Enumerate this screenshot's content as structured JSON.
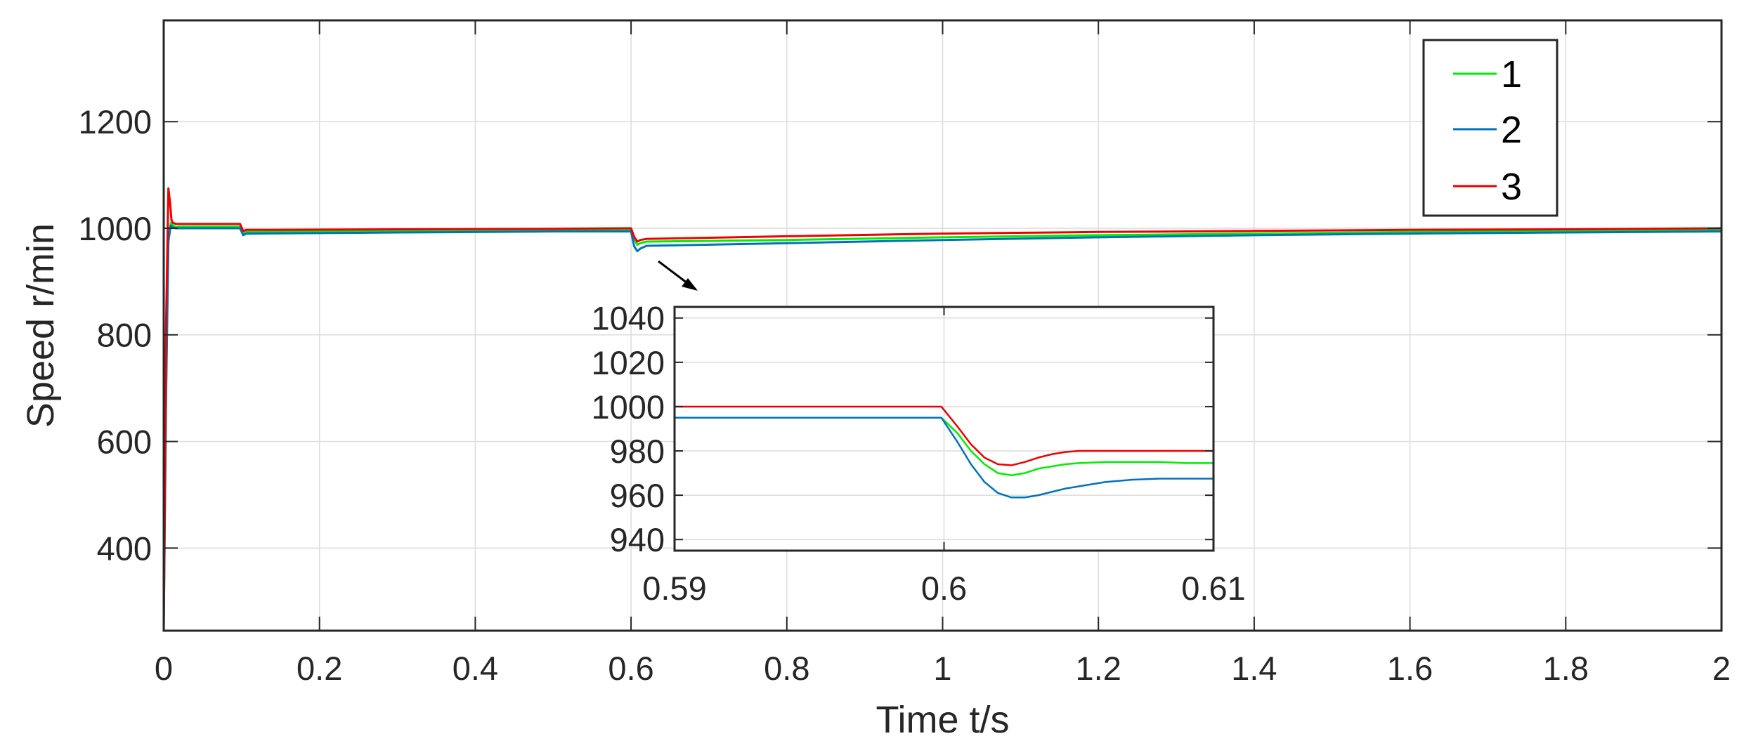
{
  "chart_data": [
    {
      "type": "line",
      "title": "",
      "xlabel": "Time  t/s",
      "ylabel": "Speed  r/min",
      "xlim": [
        0,
        2
      ],
      "ylim": [
        245,
        1390
      ],
      "xticks": [
        0,
        0.2,
        0.4,
        0.6,
        0.8,
        1,
        1.2,
        1.4,
        1.6,
        1.8,
        2
      ],
      "xtick_labels": [
        "0",
        "0.2",
        "0.4",
        "0.6",
        "0.8",
        "1",
        "1.2",
        "1.4",
        "1.6",
        "1.8",
        "2"
      ],
      "yticks": [
        400,
        600,
        800,
        1000,
        1200
      ],
      "ytick_labels": [
        "400",
        "600",
        "800",
        "1000",
        "1200"
      ],
      "grid": true,
      "legend": "top-right",
      "series": [
        {
          "name": "1",
          "color": "#00ee00",
          "x": [
            0,
            0.003,
            0.006,
            0.009,
            0.012,
            0.016,
            0.02,
            0.05,
            0.098,
            0.102,
            0.106,
            0.115,
            0.3,
            0.5,
            0.599,
            0.6,
            0.604,
            0.608,
            0.612,
            0.62,
            0.8,
            1.0,
            1.2,
            1.4,
            1.6,
            1.8,
            2.0
          ],
          "y": [
            245,
            700,
            980,
            1010,
            1005,
            1002,
            1003,
            1003,
            1003,
            990,
            993,
            993,
            995,
            996,
            996,
            996,
            980,
            969,
            972,
            975,
            978,
            983,
            987,
            990,
            993,
            995,
            997
          ]
        },
        {
          "name": "2",
          "color": "#0072bd",
          "x": [
            0,
            0.003,
            0.006,
            0.009,
            0.012,
            0.016,
            0.02,
            0.05,
            0.098,
            0.102,
            0.106,
            0.115,
            0.3,
            0.5,
            0.599,
            0.6,
            0.604,
            0.608,
            0.612,
            0.62,
            0.8,
            1.0,
            1.2,
            1.4,
            1.6,
            1.8,
            2.0
          ],
          "y": [
            245,
            680,
            975,
            1005,
            1001,
            1000,
            1000,
            1000,
            1000,
            987,
            990,
            990,
            992,
            994,
            994,
            994,
            966,
            957,
            962,
            967,
            972,
            978,
            983,
            987,
            990,
            992,
            994
          ]
        },
        {
          "name": "3",
          "color": "#ee0000",
          "x": [
            0,
            0.003,
            0.006,
            0.008,
            0.01,
            0.012,
            0.016,
            0.02,
            0.05,
            0.098,
            0.102,
            0.106,
            0.115,
            0.3,
            0.5,
            0.599,
            0.6,
            0.604,
            0.608,
            0.612,
            0.62,
            0.8,
            1.0,
            1.2,
            1.4,
            1.6,
            1.8,
            2.0
          ],
          "y": [
            245,
            820,
            1075,
            1050,
            1015,
            1010,
            1008,
            1008,
            1008,
            1008,
            995,
            997,
            997,
            998,
            999,
            1000,
            1000,
            984,
            975,
            978,
            980,
            985,
            990,
            993,
            995,
            997,
            998,
            1000
          ]
        }
      ]
    },
    {
      "type": "line",
      "title": "",
      "xlabel": "",
      "ylabel": "",
      "xlim": [
        0.59,
        0.61
      ],
      "ylim": [
        935,
        1045
      ],
      "xticks": [
        0.59,
        0.6,
        0.61
      ],
      "xtick_labels": [
        "0.59",
        "0.6",
        "0.61"
      ],
      "yticks": [
        940,
        960,
        980,
        1000,
        1020,
        1040
      ],
      "ytick_labels": [
        "940",
        "960",
        "980",
        "1000",
        "1020",
        "1040"
      ],
      "grid": true,
      "series": [
        {
          "name": "1",
          "color": "#00ee00",
          "x": [
            0.59,
            0.595,
            0.5999,
            0.6005,
            0.601,
            0.6015,
            0.602,
            0.6025,
            0.603,
            0.6035,
            0.604,
            0.6045,
            0.605,
            0.606,
            0.607,
            0.608,
            0.609,
            0.61,
            0.611,
            0.612,
            0.613,
            0.614
          ],
          "y": [
            995,
            995,
            995,
            988,
            980,
            974,
            970,
            969,
            970,
            972,
            973,
            974,
            974.5,
            975,
            975,
            975,
            974.5,
            974.5,
            974.5,
            974.5,
            974.5,
            974.5
          ]
        },
        {
          "name": "2",
          "color": "#0072bd",
          "x": [
            0.59,
            0.595,
            0.5999,
            0.6005,
            0.601,
            0.6015,
            0.602,
            0.6025,
            0.603,
            0.6035,
            0.604,
            0.6045,
            0.605,
            0.606,
            0.607,
            0.608,
            0.609,
            0.61,
            0.611,
            0.612,
            0.613,
            0.614
          ],
          "y": [
            995,
            995,
            995,
            984,
            974,
            966,
            961,
            959,
            959,
            960,
            961.5,
            963,
            964,
            966,
            967,
            967.5,
            967.5,
            967.5,
            967.5,
            967.5,
            967.5,
            967.5
          ]
        },
        {
          "name": "3",
          "color": "#ee0000",
          "x": [
            0.59,
            0.595,
            0.5999,
            0.6005,
            0.601,
            0.6015,
            0.602,
            0.6025,
            0.603,
            0.6035,
            0.604,
            0.6045,
            0.605,
            0.606,
            0.607,
            0.608,
            0.609,
            0.61,
            0.611,
            0.612,
            0.613,
            0.614
          ],
          "y": [
            1000,
            1000,
            1000,
            991,
            983,
            977,
            974,
            973.5,
            975,
            977,
            978.5,
            979.5,
            980,
            980,
            980,
            980,
            980,
            980,
            979.5,
            979.5,
            979.5,
            979.5
          ]
        }
      ]
    }
  ],
  "legend": {
    "entries": [
      {
        "label": "1",
        "color": "#00ee00"
      },
      {
        "label": "2",
        "color": "#0072bd"
      },
      {
        "label": "3",
        "color": "#ee0000"
      }
    ]
  }
}
